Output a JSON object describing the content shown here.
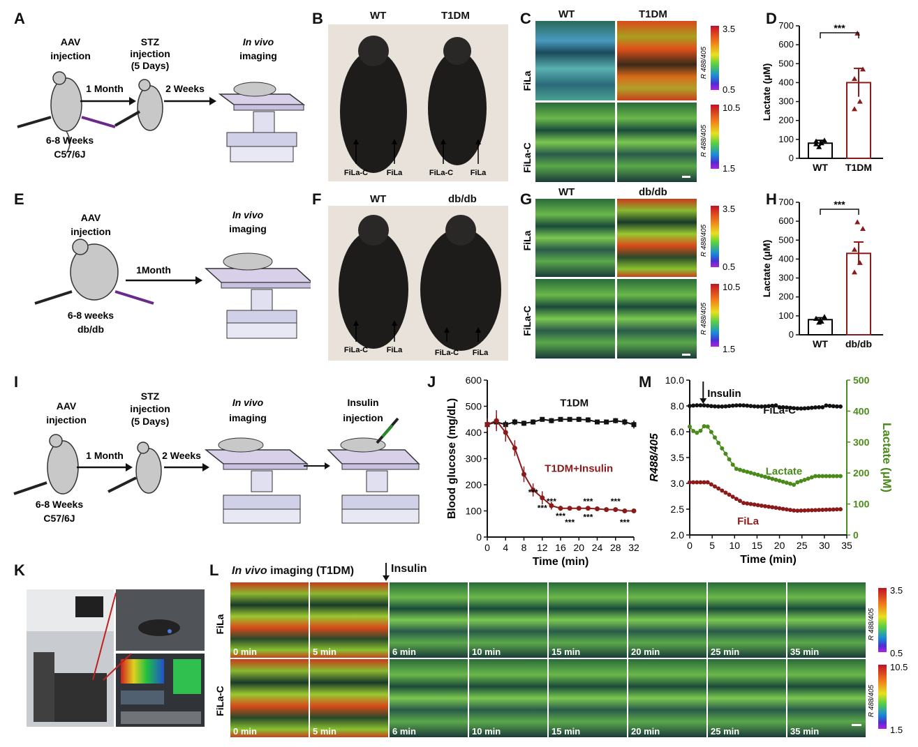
{
  "labels": {
    "A": "A",
    "B": "B",
    "C": "C",
    "D": "D",
    "E": "E",
    "F": "F",
    "G": "G",
    "H": "H",
    "I": "I",
    "J": "J",
    "K": "K",
    "L": "L",
    "M": "M"
  },
  "A": {
    "aav_line1": "AAV",
    "aav_line2": "injection",
    "stz_line1": "STZ",
    "stz_line2": "injection",
    "stz_line3": "(5 Days)",
    "invivo_italic": "In vivo",
    "invivo_line2": "imaging",
    "arrow1": "1 Month",
    "arrow2": "2 Weeks",
    "mouse_line1": "6-8 Weeks",
    "mouse_line2": "C57/6J"
  },
  "B": {
    "wt": "WT",
    "t1dm": "T1DM",
    "filac": "FiLa-C",
    "fila": "FiLa"
  },
  "C": {
    "wt": "WT",
    "t1dm": "T1DM",
    "row1": "FiLa",
    "row2": "FiLa-C",
    "cb1_max": "3.5",
    "cb1_min": "0.5",
    "cb2_max": "10.5",
    "cb2_min": "1.5",
    "cb_label": "R 488/405"
  },
  "E": {
    "aav_line1": "AAV",
    "aav_line2": "injection",
    "invivo_italic": "In vivo",
    "invivo_line2": "imaging",
    "arrow": "1Month",
    "mouse_line1": "6-8 weeks",
    "mouse_line2": "db/db"
  },
  "F": {
    "wt": "WT",
    "dbdb": "db/db",
    "filac": "FiLa-C",
    "fila": "FiLa"
  },
  "G": {
    "wt": "WT",
    "dbdb": "db/db",
    "row1": "FiLa",
    "row2": "FiLa-C",
    "cb1_max": "3.5",
    "cb1_min": "0.5",
    "cb2_max": "10.5",
    "cb2_min": "1.5",
    "cb_label": "R 488/405"
  },
  "I": {
    "aav_line1": "AAV",
    "aav_line2": "injection",
    "stz_line1": "STZ",
    "stz_line2": "injection",
    "stz_line3": "(5 Days)",
    "invivo_italic": "In vivo",
    "invivo_line2": "imaging",
    "ins_line1": "Insulin",
    "ins_line2": "injection",
    "arrow1": "1 Month",
    "arrow2": "2 Weeks",
    "mouse_line1": "6-8 Weeks",
    "mouse_line2": "C57/6J"
  },
  "L": {
    "title_italic": "In vivo",
    "title_rest": " imaging (T1DM)",
    "insulin": "Insulin",
    "row1": "FiLa",
    "row2": "FiLa-C",
    "times": [
      "0 min",
      "5 min",
      "6 min",
      "10 min",
      "15 min",
      "20 min",
      "25 min",
      "35 min"
    ],
    "cb1_max": "3.5",
    "cb1_min": "0.5",
    "cb2_max": "10.5",
    "cb2_min": "1.5",
    "cb_label": "R 488/405"
  },
  "chart_data": [
    {
      "panel": "D",
      "type": "bar",
      "categories": [
        "WT",
        "T1DM"
      ],
      "values": [
        80,
        400
      ],
      "sem": [
        15,
        75
      ],
      "points": [
        [
          60,
          95,
          75,
          80,
          90
        ],
        [
          660,
          470,
          420,
          300,
          260
        ]
      ],
      "ylabel": "Lactate (μM)",
      "ylim": [
        0,
        700
      ],
      "yticks": [
        "0",
        "100",
        "200",
        "300",
        "400",
        "500",
        "600",
        "700"
      ],
      "significance": "***",
      "colors": {
        "WT": "#000000",
        "T1DM": "#8b1a1a"
      }
    },
    {
      "panel": "H",
      "type": "bar",
      "categories": [
        "WT",
        "db/db"
      ],
      "values": [
        80,
        430
      ],
      "sem": [
        10,
        60
      ],
      "points": [
        [
          65,
          95,
          85,
          70,
          85
        ],
        [
          595,
          560,
          450,
          380,
          330
        ]
      ],
      "ylabel": "Lactate (μM)",
      "ylim": [
        0,
        700
      ],
      "yticks": [
        "0",
        "100",
        "200",
        "300",
        "400",
        "500",
        "600",
        "700"
      ],
      "significance": "***",
      "colors": {
        "WT": "#000000",
        "db/db": "#8b1a1a"
      }
    },
    {
      "panel": "J",
      "type": "line",
      "xlabel": "Time (min)",
      "ylabel": "Blood glucose (mg/dL)",
      "xlim": [
        0,
        32
      ],
      "ylim": [
        0,
        600
      ],
      "xticks": [
        "0",
        "4",
        "8",
        "12",
        "16",
        "20",
        "24",
        "28",
        "32"
      ],
      "yticks": [
        "0",
        "100",
        "200",
        "300",
        "400",
        "500",
        "600"
      ],
      "series": [
        {
          "name": "T1DM",
          "color": "#111111",
          "x": [
            0,
            2,
            4,
            6,
            8,
            10,
            12,
            14,
            16,
            18,
            20,
            22,
            24,
            26,
            28,
            30,
            32
          ],
          "y": [
            430,
            440,
            430,
            440,
            435,
            440,
            450,
            445,
            450,
            450,
            450,
            448,
            440,
            440,
            445,
            440,
            430
          ],
          "err": [
            20,
            25,
            15,
            12,
            10,
            10,
            8,
            10,
            8,
            8,
            10,
            10,
            8,
            8,
            10,
            12,
            15
          ]
        },
        {
          "name": "T1DM+Insulin",
          "color": "#8b1a1a",
          "x": [
            0,
            2,
            4,
            6,
            8,
            10,
            12,
            14,
            16,
            18,
            20,
            22,
            24,
            26,
            28,
            30,
            32
          ],
          "y": [
            430,
            445,
            400,
            340,
            240,
            180,
            150,
            120,
            110,
            110,
            110,
            110,
            108,
            105,
            105,
            100,
            100
          ],
          "err": [
            25,
            40,
            35,
            30,
            30,
            25,
            25,
            15,
            10,
            8,
            6,
            6,
            6,
            5,
            5,
            5,
            5
          ]
        }
      ],
      "stars": [
        "***",
        "***",
        "***",
        "***",
        "***",
        "***",
        "***",
        "***",
        "***"
      ]
    },
    {
      "panel": "M",
      "type": "line",
      "xlabel": "Time (min)",
      "ylabel_left": "R488/405",
      "ylabel_right": "Lactate (μM)",
      "xticks": [
        "0",
        "5",
        "10",
        "15",
        "20",
        "25",
        "30",
        "35"
      ],
      "yticks_left": [
        "2.0",
        "2.5",
        "3.0",
        "3.5",
        "6.0",
        "8.0",
        "10.0"
      ],
      "yticks_right": [
        "0",
        "100",
        "200",
        "300",
        "400",
        "500"
      ],
      "annotation": "Insulin",
      "series": [
        {
          "name": "FiLa-C",
          "color": "#111111",
          "axis": "left"
        },
        {
          "name": "Lactate",
          "color": "#4a8a1a",
          "axis": "right"
        },
        {
          "name": "FiLa",
          "color": "#8b1a1a",
          "axis": "left"
        }
      ]
    }
  ]
}
